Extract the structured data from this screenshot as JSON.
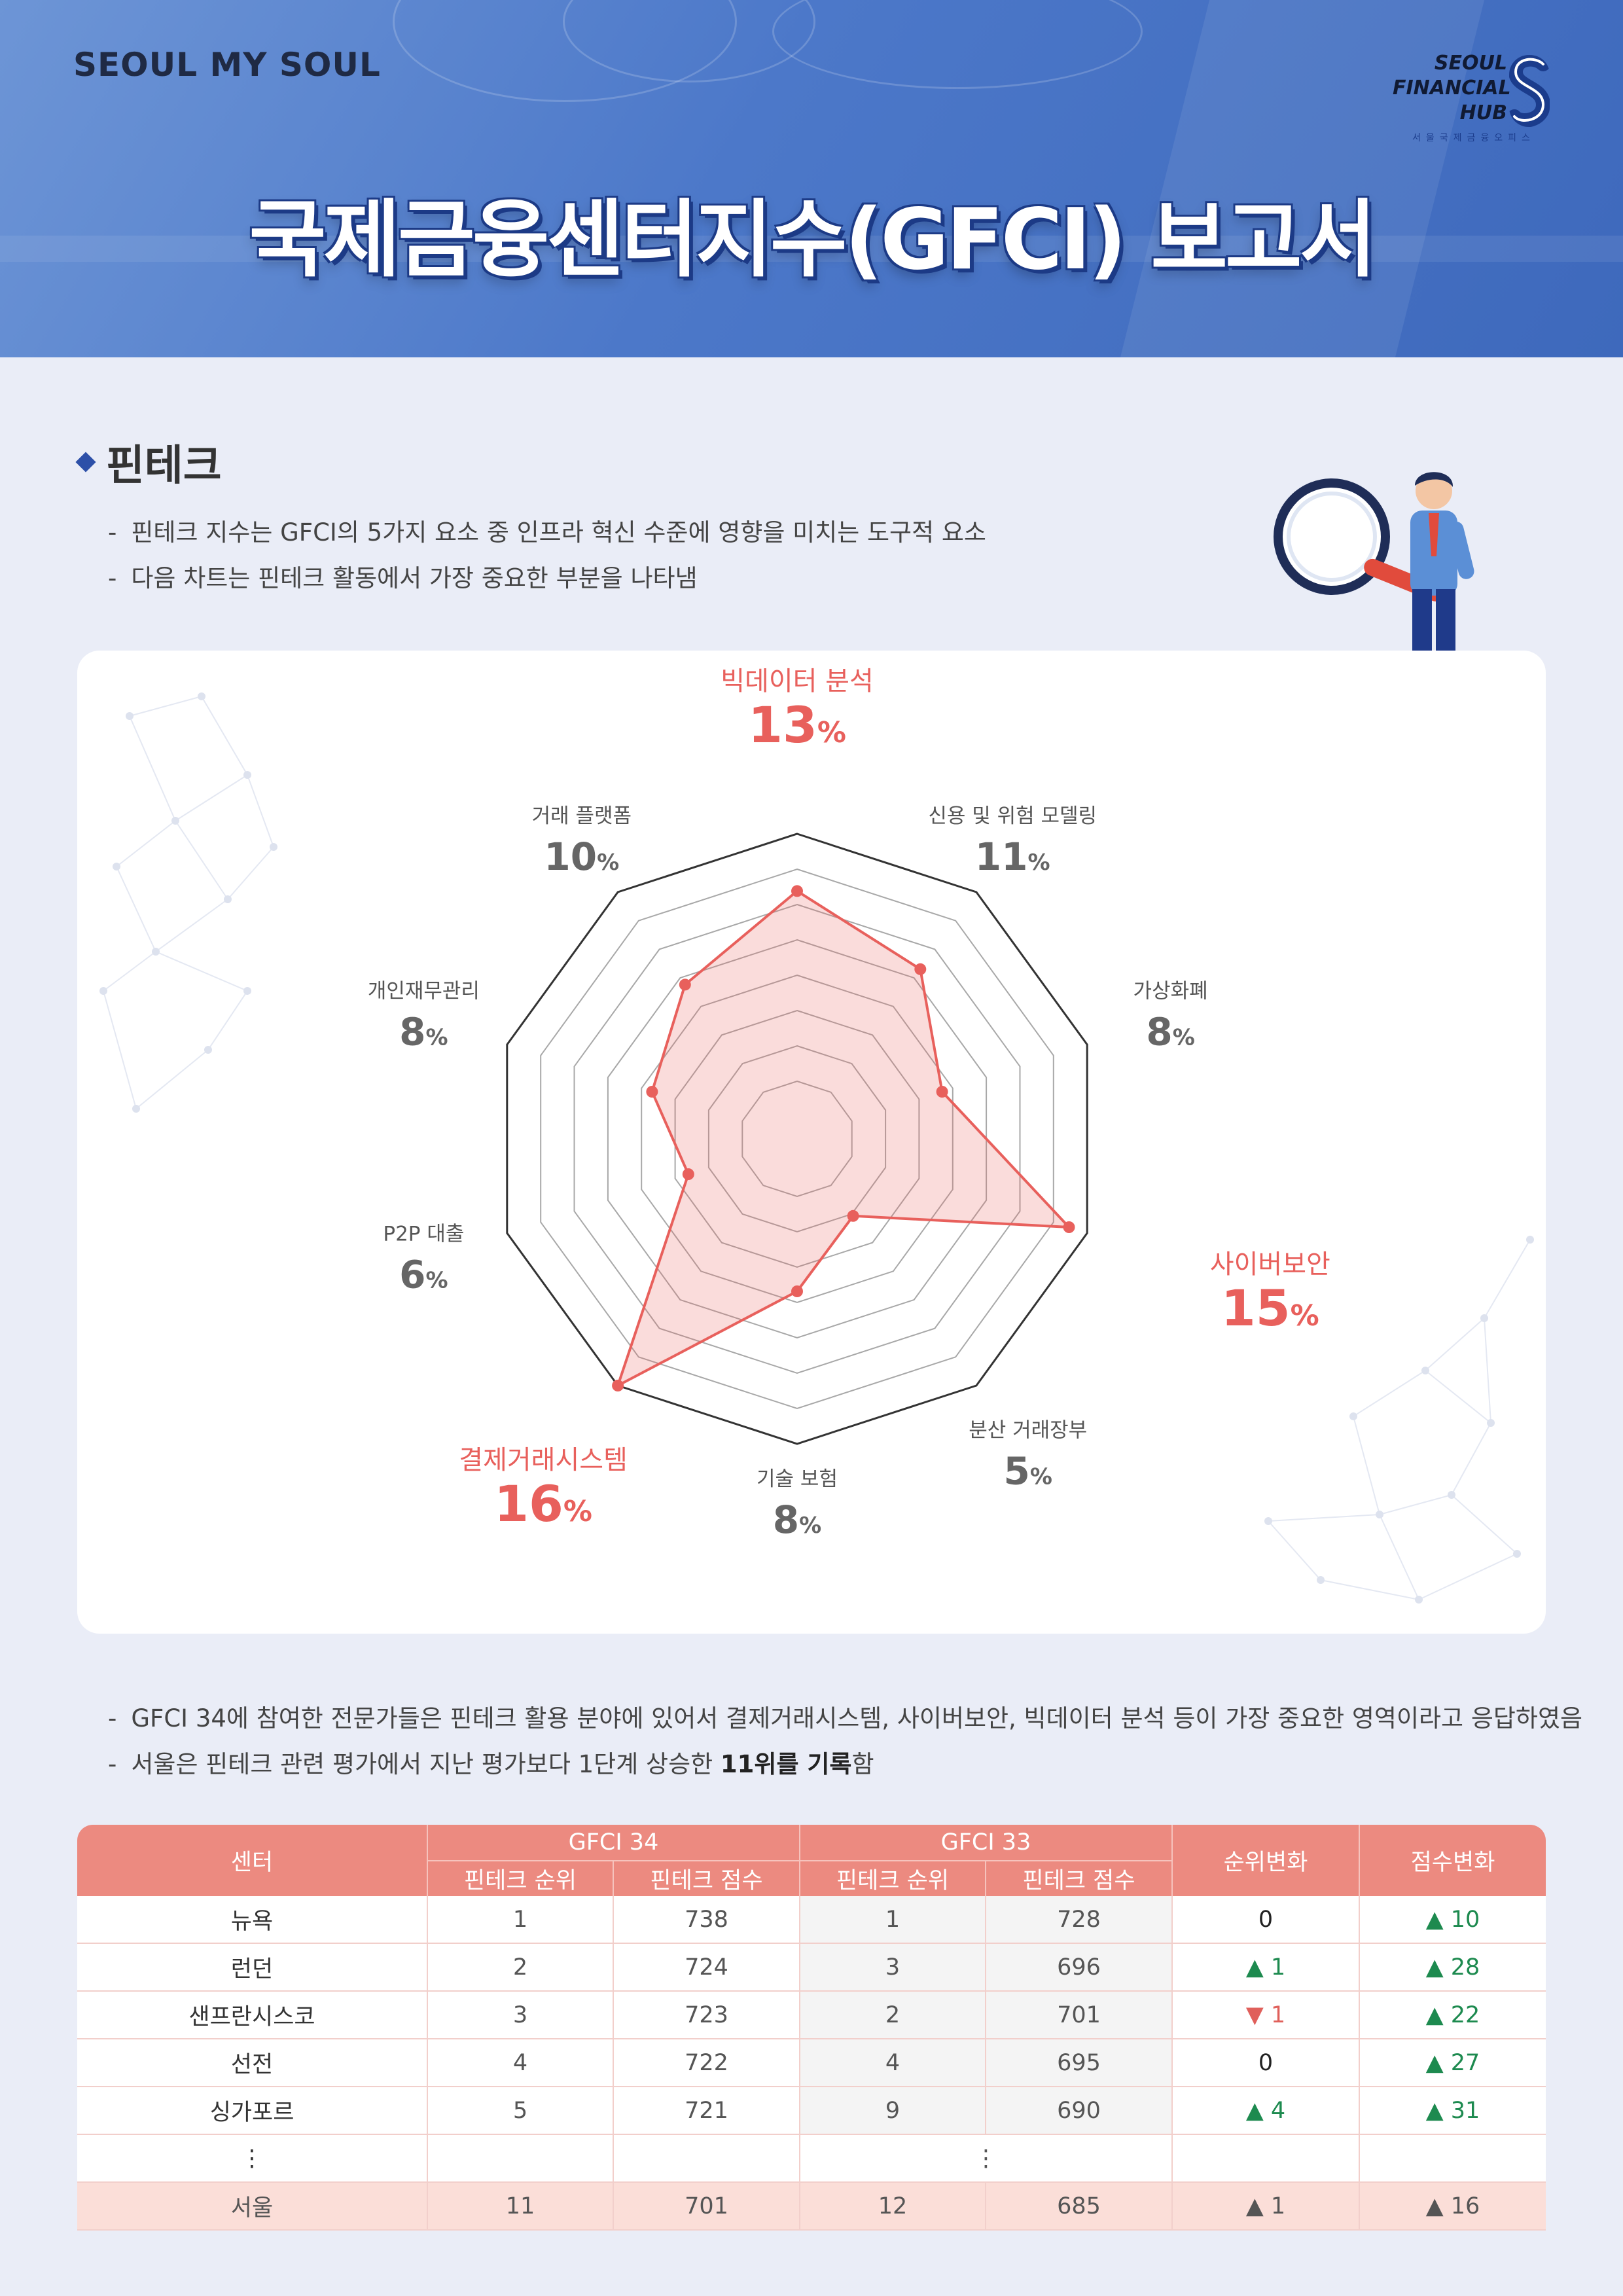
{
  "header": {
    "logo_left": "SEOUL MY SOUL",
    "logo_right_lines": [
      "SEOUL",
      "FINANCIAL",
      "HUB"
    ],
    "logo_right_sub": "서울국제금융오피스",
    "title": "국제금융센터지수(GFCI) 보고서"
  },
  "section": {
    "title": "핀테크",
    "intro": [
      "핀테크 지수는 GFCI의 5가지 요소 중 인프라 혁신 수준에 영향을 미치는 도구적 요소",
      "다음 차트는 핀테크 활동에서 가장 중요한 부분을 나타냄"
    ]
  },
  "colors": {
    "accent": "#e8605c",
    "brand_blue": "#2d50a8",
    "header_blue": "#4c78c9",
    "table_head": "#ec8a80",
    "table_highlight": "#fbded8",
    "up_green": "#1d8a4f"
  },
  "chart_data": {
    "type": "radar",
    "unit": "%",
    "categories": [
      "빅데이터 분석",
      "신용 및 위험 모델링",
      "가상화폐",
      "사이버보안",
      "분산 거래장부",
      "기술 보험",
      "결제거래시스템",
      "P2P 대출",
      "개인재무관리",
      "거래 플랫폼"
    ],
    "values": [
      13,
      11,
      8,
      15,
      5,
      8,
      16,
      6,
      8,
      10
    ],
    "highlighted": [
      "빅데이터 분석",
      "사이버보안",
      "결제거래시스템"
    ],
    "rmax": 16,
    "rings": 8,
    "grid": true
  },
  "notes": {
    "line1": "GFCI 34에 참여한 전문가들은 핀테크 활용 분야에 있어서 결제거래시스템, 사이버보안, 빅데이터 분석 등이 가장 중요한 영역이라고 응답하였음",
    "line2_pre": "서울은 핀테크 관련 평가에서 지난 평가보다 1단계 상승한 ",
    "line2_bold": "11위를 기록",
    "line2_post": "함"
  },
  "table": {
    "headers": {
      "center": "센터",
      "gfci34": "GFCI 34",
      "gfci33": "GFCI 33",
      "rank_change": "순위변화",
      "score_change": "점수변화",
      "rank": "핀테크 순위",
      "score": "핀테크 점수"
    },
    "rows": [
      {
        "name": "뉴욕",
        "r34": "1",
        "s34": "738",
        "r33": "1",
        "s33": "728",
        "rc": "0",
        "rc_dir": "same",
        "sc": "▲ 10",
        "sc_dir": "up"
      },
      {
        "name": "런던",
        "r34": "2",
        "s34": "724",
        "r33": "3",
        "s33": "696",
        "rc": "▲ 1",
        "rc_dir": "up",
        "sc": "▲ 28",
        "sc_dir": "up"
      },
      {
        "name": "샌프란시스코",
        "r34": "3",
        "s34": "723",
        "r33": "2",
        "s33": "701",
        "rc": "▼ 1",
        "rc_dir": "down",
        "sc": "▲ 22",
        "sc_dir": "up"
      },
      {
        "name": "선전",
        "r34": "4",
        "s34": "722",
        "r33": "4",
        "s33": "695",
        "rc": "0",
        "rc_dir": "same",
        "sc": "▲ 27",
        "sc_dir": "up"
      },
      {
        "name": "싱가포르",
        "r34": "5",
        "s34": "721",
        "r33": "9",
        "s33": "690",
        "rc": "▲ 4",
        "rc_dir": "up",
        "sc": "▲ 31",
        "sc_dir": "up"
      }
    ],
    "ellipsis": "⋮",
    "seoul": {
      "name": "서울",
      "r34": "11",
      "s34": "701",
      "r33": "12",
      "s33": "685",
      "rc": "▲ 1",
      "rc_dir": "up",
      "sc": "▲ 16",
      "sc_dir": "up"
    }
  }
}
